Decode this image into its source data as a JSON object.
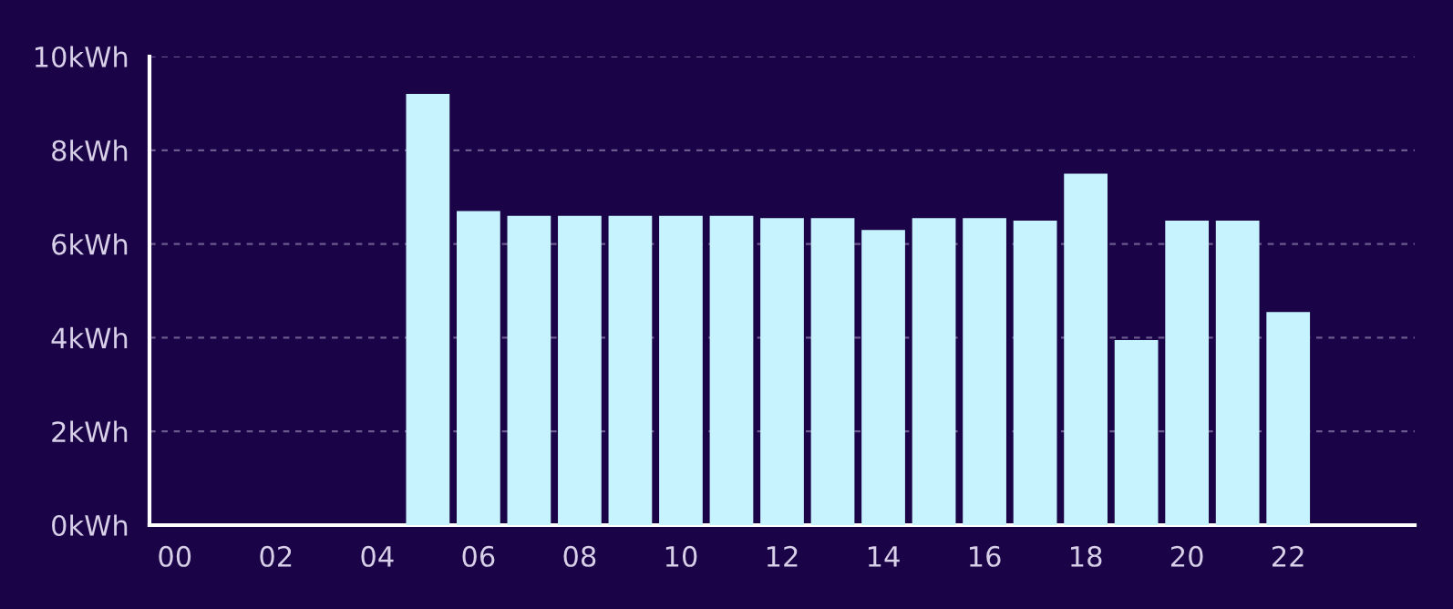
{
  "chart_data": {
    "type": "bar",
    "categories": [
      "00",
      null,
      "02",
      null,
      "04",
      null,
      "06",
      null,
      "08",
      null,
      "10",
      null,
      "12",
      null,
      "14",
      null,
      "16",
      null,
      "18",
      null,
      "20",
      null,
      "22",
      null
    ],
    "values": [
      0,
      0,
      0,
      0,
      0,
      9.2,
      6.7,
      6.6,
      6.6,
      6.6,
      6.6,
      6.6,
      6.55,
      6.55,
      6.3,
      6.55,
      6.55,
      6.5,
      7.5,
      3.95,
      6.5,
      6.5,
      4.55,
      0
    ],
    "color": "#c6f3fe",
    "ylim": [
      0,
      10
    ],
    "yticks": [
      {
        "value": 0,
        "label": "0kWh"
      },
      {
        "value": 2,
        "label": "2kWh"
      },
      {
        "value": 4,
        "label": "4kWh"
      },
      {
        "value": 6,
        "label": "6kWh"
      },
      {
        "value": 8,
        "label": "8kWh"
      },
      {
        "value": 10,
        "label": "10kWh"
      }
    ],
    "grid": "y"
  }
}
